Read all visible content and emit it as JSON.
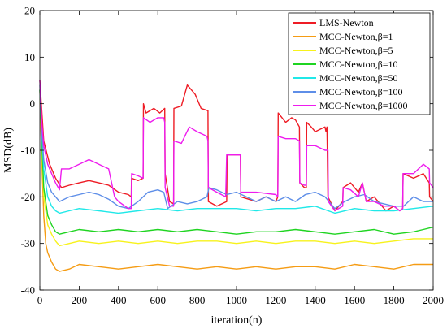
{
  "chart_data": {
    "type": "line",
    "xlabel": "iteration(n)",
    "ylabel": "MSD(dB)",
    "xlim": [
      0,
      2000
    ],
    "ylim": [
      -40,
      20
    ],
    "xticks": [
      0,
      200,
      400,
      600,
      800,
      1000,
      1200,
      1400,
      1600,
      1800,
      2000
    ],
    "yticks": [
      -40,
      -30,
      -20,
      -10,
      0,
      10,
      20
    ],
    "grid": false,
    "legend_position": "top-right",
    "series": [
      {
        "name": "LMS-Newton",
        "color": "#ee1c25",
        "points": [
          [
            0,
            5
          ],
          [
            20,
            -8
          ],
          [
            50,
            -13
          ],
          [
            80,
            -16
          ],
          [
            110,
            -18
          ],
          [
            150,
            -17.5
          ],
          [
            200,
            -17
          ],
          [
            250,
            -16.5
          ],
          [
            300,
            -17
          ],
          [
            350,
            -17.5
          ],
          [
            400,
            -19
          ],
          [
            450,
            -19.5
          ],
          [
            465,
            -20
          ],
          [
            466,
            -16
          ],
          [
            500,
            -16.5
          ],
          [
            525,
            -16
          ],
          [
            527,
            0
          ],
          [
            540,
            -2
          ],
          [
            580,
            -1
          ],
          [
            610,
            -2
          ],
          [
            635,
            -1
          ],
          [
            637,
            -15
          ],
          [
            660,
            -21
          ],
          [
            680,
            -21.5
          ],
          [
            682,
            -1
          ],
          [
            720,
            -0.5
          ],
          [
            750,
            4
          ],
          [
            790,
            2
          ],
          [
            820,
            -1
          ],
          [
            855,
            -1.5
          ],
          [
            857,
            -21
          ],
          [
            900,
            -22
          ],
          [
            950,
            -21
          ],
          [
            952,
            -11
          ],
          [
            1000,
            -11
          ],
          [
            1020,
            -11
          ],
          [
            1022,
            -20
          ],
          [
            1100,
            -21
          ],
          [
            1150,
            -20
          ],
          [
            1200,
            -21
          ],
          [
            1210,
            -20
          ],
          [
            1212,
            -2
          ],
          [
            1250,
            -4
          ],
          [
            1280,
            -3
          ],
          [
            1300,
            -3.5
          ],
          [
            1320,
            -5
          ],
          [
            1322,
            -17
          ],
          [
            1345,
            -18
          ],
          [
            1355,
            -18
          ],
          [
            1357,
            -4
          ],
          [
            1380,
            -5
          ],
          [
            1400,
            -6
          ],
          [
            1450,
            -5
          ],
          [
            1455,
            -6
          ],
          [
            1460,
            -5
          ],
          [
            1465,
            -20
          ],
          [
            1500,
            -23
          ],
          [
            1540,
            -21
          ],
          [
            1542,
            -18
          ],
          [
            1580,
            -17
          ],
          [
            1600,
            -18
          ],
          [
            1620,
            -19
          ],
          [
            1640,
            -17
          ],
          [
            1660,
            -21
          ],
          [
            1700,
            -20
          ],
          [
            1740,
            -22
          ],
          [
            1760,
            -23
          ],
          [
            1800,
            -22
          ],
          [
            1830,
            -23
          ],
          [
            1845,
            -22.5
          ],
          [
            1847,
            -15
          ],
          [
            1900,
            -16
          ],
          [
            1950,
            -15
          ],
          [
            1980,
            -17
          ],
          [
            1982,
            -20
          ],
          [
            2000,
            -21
          ]
        ]
      },
      {
        "name": "MCC-Newton,β=1",
        "color": "#f59c14",
        "points": [
          [
            0,
            3
          ],
          [
            10,
            -12
          ],
          [
            20,
            -24
          ],
          [
            30,
            -30
          ],
          [
            40,
            -32
          ],
          [
            60,
            -34
          ],
          [
            80,
            -35.5
          ],
          [
            100,
            -36
          ],
          [
            150,
            -35.5
          ],
          [
            200,
            -34.5
          ],
          [
            300,
            -35
          ],
          [
            400,
            -35.5
          ],
          [
            500,
            -35
          ],
          [
            600,
            -34.5
          ],
          [
            700,
            -35
          ],
          [
            800,
            -35.5
          ],
          [
            900,
            -35
          ],
          [
            1000,
            -35.5
          ],
          [
            1100,
            -35
          ],
          [
            1200,
            -35.5
          ],
          [
            1300,
            -35
          ],
          [
            1400,
            -35
          ],
          [
            1500,
            -35.5
          ],
          [
            1600,
            -34.5
          ],
          [
            1700,
            -35
          ],
          [
            1800,
            -35.5
          ],
          [
            1900,
            -34.5
          ],
          [
            2000,
            -34.5
          ]
        ]
      },
      {
        "name": "MCC-Newton,β=5",
        "color": "#f7f21c",
        "points": [
          [
            0,
            3
          ],
          [
            10,
            -10
          ],
          [
            20,
            -20
          ],
          [
            40,
            -26
          ],
          [
            60,
            -28
          ],
          [
            80,
            -29.5
          ],
          [
            100,
            -30.5
          ],
          [
            150,
            -30
          ],
          [
            200,
            -29.5
          ],
          [
            300,
            -30
          ],
          [
            400,
            -29.5
          ],
          [
            500,
            -30
          ],
          [
            600,
            -29.5
          ],
          [
            700,
            -30
          ],
          [
            800,
            -29.5
          ],
          [
            900,
            -29.5
          ],
          [
            1000,
            -30
          ],
          [
            1100,
            -29.5
          ],
          [
            1200,
            -30
          ],
          [
            1300,
            -29.5
          ],
          [
            1400,
            -29.5
          ],
          [
            1500,
            -30
          ],
          [
            1600,
            -29.5
          ],
          [
            1700,
            -30
          ],
          [
            1800,
            -29.5
          ],
          [
            1900,
            -29
          ],
          [
            2000,
            -29
          ]
        ]
      },
      {
        "name": "MCC-Newton,β=10",
        "color": "#1fd421",
        "points": [
          [
            0,
            3
          ],
          [
            10,
            -8
          ],
          [
            20,
            -18
          ],
          [
            40,
            -24
          ],
          [
            60,
            -26
          ],
          [
            80,
            -27.5
          ],
          [
            100,
            -28
          ],
          [
            150,
            -27.5
          ],
          [
            200,
            -27
          ],
          [
            300,
            -27.5
          ],
          [
            400,
            -27
          ],
          [
            500,
            -27.5
          ],
          [
            600,
            -27
          ],
          [
            700,
            -27.5
          ],
          [
            800,
            -27
          ],
          [
            900,
            -27.5
          ],
          [
            1000,
            -28
          ],
          [
            1100,
            -27.5
          ],
          [
            1200,
            -27.5
          ],
          [
            1300,
            -27
          ],
          [
            1400,
            -27.5
          ],
          [
            1500,
            -28
          ],
          [
            1600,
            -27.5
          ],
          [
            1700,
            -27
          ],
          [
            1800,
            -28
          ],
          [
            1900,
            -27.5
          ],
          [
            1950,
            -27
          ],
          [
            2000,
            -26.5
          ]
        ]
      },
      {
        "name": "MCC-Newton,β=50",
        "color": "#20e8e8",
        "points": [
          [
            0,
            3
          ],
          [
            10,
            -6
          ],
          [
            20,
            -14
          ],
          [
            40,
            -20
          ],
          [
            60,
            -22
          ],
          [
            80,
            -23
          ],
          [
            100,
            -23.5
          ],
          [
            150,
            -23
          ],
          [
            200,
            -22.5
          ],
          [
            300,
            -23
          ],
          [
            400,
            -23.5
          ],
          [
            500,
            -23
          ],
          [
            600,
            -22.5
          ],
          [
            700,
            -23
          ],
          [
            800,
            -22.5
          ],
          [
            900,
            -22.5
          ],
          [
            1000,
            -22.5
          ],
          [
            1100,
            -23
          ],
          [
            1200,
            -22.5
          ],
          [
            1300,
            -22.5
          ],
          [
            1400,
            -22
          ],
          [
            1500,
            -23.5
          ],
          [
            1600,
            -22.5
          ],
          [
            1700,
            -23
          ],
          [
            1800,
            -23
          ],
          [
            1900,
            -22.5
          ],
          [
            2000,
            -22
          ]
        ]
      },
      {
        "name": "MCC-Newton,β=100",
        "color": "#5e8ee8",
        "points": [
          [
            0,
            4
          ],
          [
            10,
            -6
          ],
          [
            20,
            -12
          ],
          [
            40,
            -17
          ],
          [
            60,
            -19
          ],
          [
            80,
            -20
          ],
          [
            100,
            -21
          ],
          [
            150,
            -20
          ],
          [
            200,
            -19.5
          ],
          [
            250,
            -19
          ],
          [
            300,
            -19.5
          ],
          [
            350,
            -20.5
          ],
          [
            400,
            -22
          ],
          [
            450,
            -22.5
          ],
          [
            500,
            -21
          ],
          [
            550,
            -19
          ],
          [
            600,
            -18.5
          ],
          [
            630,
            -19
          ],
          [
            650,
            -22.5
          ],
          [
            700,
            -21
          ],
          [
            750,
            -21.5
          ],
          [
            800,
            -21
          ],
          [
            850,
            -20
          ],
          [
            860,
            -18
          ],
          [
            900,
            -18.5
          ],
          [
            950,
            -19.5
          ],
          [
            1000,
            -19
          ],
          [
            1050,
            -20
          ],
          [
            1100,
            -21
          ],
          [
            1150,
            -20
          ],
          [
            1200,
            -21
          ],
          [
            1250,
            -20
          ],
          [
            1300,
            -21
          ],
          [
            1350,
            -19.5
          ],
          [
            1400,
            -19
          ],
          [
            1450,
            -20
          ],
          [
            1500,
            -22.5
          ],
          [
            1550,
            -21
          ],
          [
            1600,
            -20
          ],
          [
            1650,
            -19.5
          ],
          [
            1700,
            -21
          ],
          [
            1750,
            -21.5
          ],
          [
            1800,
            -22
          ],
          [
            1850,
            -22
          ],
          [
            1900,
            -20
          ],
          [
            1950,
            -21
          ],
          [
            2000,
            -21
          ]
        ]
      },
      {
        "name": "MCC-Newton,β=1000",
        "color": "#ee1cee",
        "points": [
          [
            0,
            5
          ],
          [
            10,
            -4
          ],
          [
            20,
            -9
          ],
          [
            40,
            -13
          ],
          [
            60,
            -15
          ],
          [
            80,
            -17
          ],
          [
            100,
            -18.5
          ],
          [
            110,
            -14
          ],
          [
            150,
            -14
          ],
          [
            200,
            -13
          ],
          [
            250,
            -12
          ],
          [
            300,
            -13
          ],
          [
            350,
            -14
          ],
          [
            380,
            -20
          ],
          [
            400,
            -21
          ],
          [
            450,
            -22.5
          ],
          [
            465,
            -22.5
          ],
          [
            467,
            -15
          ],
          [
            500,
            -15.5
          ],
          [
            525,
            -16
          ],
          [
            527,
            -3
          ],
          [
            560,
            -4
          ],
          [
            600,
            -3
          ],
          [
            630,
            -3
          ],
          [
            635,
            -4
          ],
          [
            637,
            -18
          ],
          [
            660,
            -22
          ],
          [
            680,
            -22
          ],
          [
            682,
            -8
          ],
          [
            720,
            -8.5
          ],
          [
            760,
            -5
          ],
          [
            800,
            -6
          ],
          [
            850,
            -7
          ],
          [
            855,
            -8
          ],
          [
            857,
            -18
          ],
          [
            900,
            -19
          ],
          [
            945,
            -20
          ],
          [
            950,
            -11
          ],
          [
            1000,
            -11
          ],
          [
            1020,
            -11
          ],
          [
            1022,
            -19
          ],
          [
            1100,
            -19
          ],
          [
            1200,
            -19.5
          ],
          [
            1210,
            -20
          ],
          [
            1212,
            -7
          ],
          [
            1250,
            -7.5
          ],
          [
            1300,
            -7.5
          ],
          [
            1320,
            -8
          ],
          [
            1322,
            -17
          ],
          [
            1345,
            -17.5
          ],
          [
            1355,
            -17.5
          ],
          [
            1357,
            -9
          ],
          [
            1400,
            -9
          ],
          [
            1450,
            -10
          ],
          [
            1465,
            -10
          ],
          [
            1467,
            -21
          ],
          [
            1500,
            -23
          ],
          [
            1540,
            -22
          ],
          [
            1542,
            -18
          ],
          [
            1580,
            -18.5
          ],
          [
            1620,
            -20
          ],
          [
            1640,
            -17
          ],
          [
            1660,
            -21
          ],
          [
            1700,
            -21
          ],
          [
            1750,
            -22
          ],
          [
            1800,
            -22
          ],
          [
            1830,
            -23
          ],
          [
            1845,
            -22.5
          ],
          [
            1847,
            -15
          ],
          [
            1900,
            -15
          ],
          [
            1950,
            -13
          ],
          [
            1980,
            -14
          ],
          [
            1982,
            -17
          ],
          [
            2000,
            -18
          ]
        ]
      }
    ]
  }
}
